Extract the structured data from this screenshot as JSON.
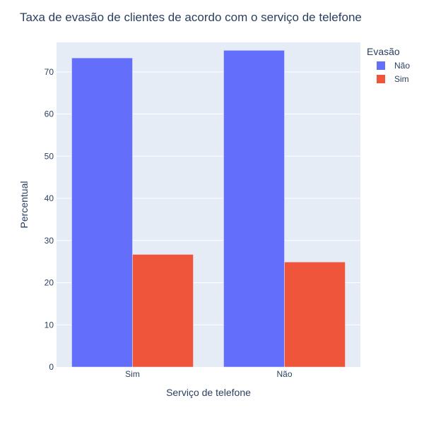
{
  "chart_data": {
    "type": "bar",
    "title": "Taxa de evasão de clientes de acordo com o serviço de telefone",
    "xlabel": "Serviço de telefone",
    "ylabel": "Percentual",
    "categories": [
      "Sim",
      "Não"
    ],
    "series": [
      {
        "name": "Não",
        "values": [
          73.3,
          75.1
        ],
        "color": "#636efa"
      },
      {
        "name": "Sim",
        "values": [
          26.7,
          24.9
        ],
        "color": "#ef553b"
      }
    ],
    "ylim": [
      0,
      77
    ],
    "yticks": [
      0,
      10,
      20,
      30,
      40,
      50,
      60,
      70
    ],
    "legend": {
      "title": "Evasão",
      "placement": "top-right"
    },
    "grid": true,
    "plot_background": "#e5ecf6",
    "text_color": "#2a3f5f"
  }
}
